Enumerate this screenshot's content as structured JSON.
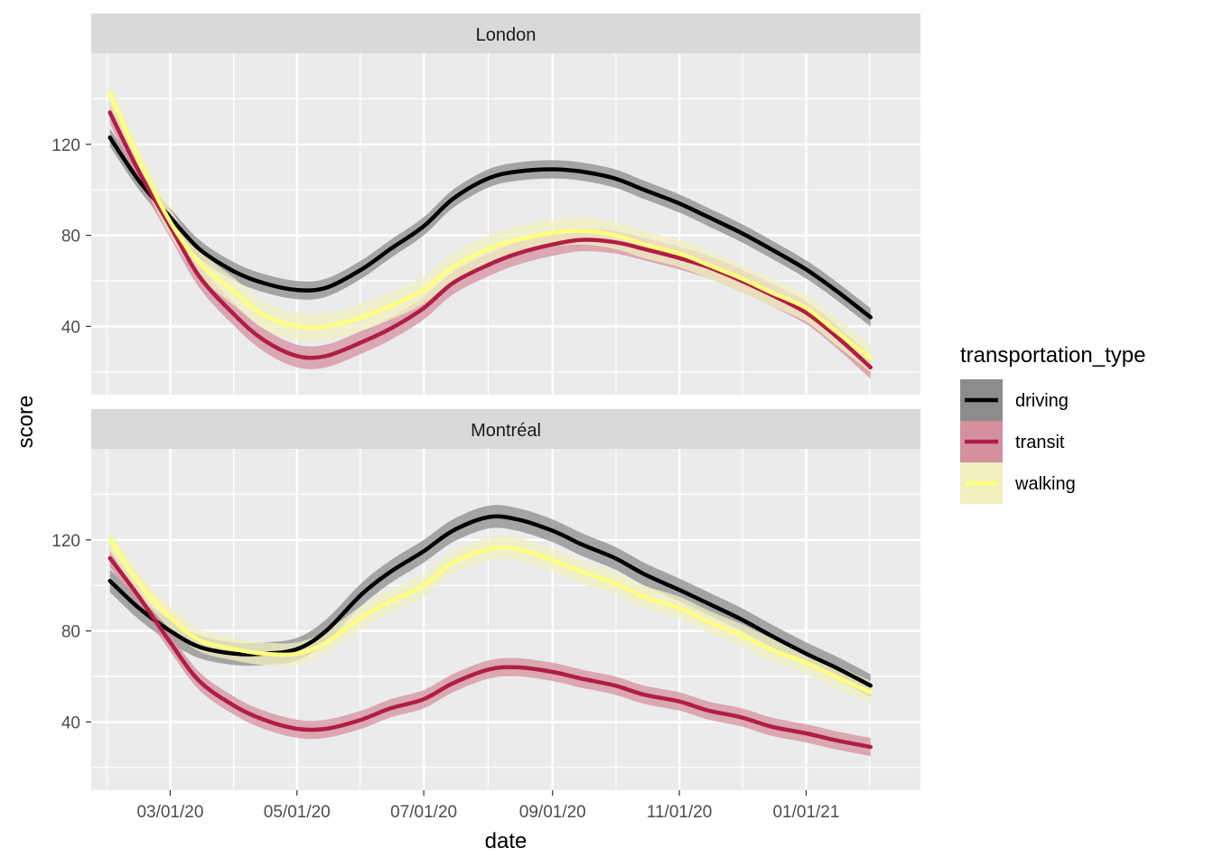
{
  "chart_data": {
    "type": "line",
    "xlabel": "date",
    "ylabel": "score",
    "x_ticks": [
      "03/01/20",
      "05/01/20",
      "07/01/20",
      "09/01/20",
      "11/01/20",
      "01/01/21"
    ],
    "x_range": [
      "2020-01-23",
      "2021-02-25"
    ],
    "y_ticks": [
      40,
      80,
      120
    ],
    "ylim": [
      10,
      160
    ],
    "grid": true,
    "legend": {
      "title": "transportation_type",
      "position": "right",
      "entries": [
        "driving",
        "transit",
        "walking"
      ]
    },
    "series_styles": {
      "driving": {
        "line": "#000000",
        "band": "#8c8c8c"
      },
      "transit": {
        "line": "#b01e45",
        "band": "#d4909f"
      },
      "walking": {
        "line": "#ffff80",
        "band": "#f0f0c0"
      }
    },
    "panels": [
      {
        "title": "London",
        "series": [
          {
            "name": "driving",
            "x": [
              "2020-02-01",
              "2020-02-15",
              "2020-03-01",
              "2020-03-15",
              "2020-04-01",
              "2020-04-15",
              "2020-05-01",
              "2020-05-15",
              "2020-06-01",
              "2020-06-15",
              "2020-07-01",
              "2020-07-15",
              "2020-08-01",
              "2020-08-15",
              "2020-09-01",
              "2020-09-15",
              "2020-10-01",
              "2020-10-15",
              "2020-11-01",
              "2020-11-15",
              "2020-12-01",
              "2020-12-15",
              "2021-01-01",
              "2021-01-15",
              "2021-02-01"
            ],
            "y": [
              123,
              104,
              88,
              74,
              64,
              59,
              56,
              57,
              65,
              74,
              84,
              96,
              105,
              108,
              109,
              108,
              105,
              100,
              94,
              88,
              81,
              74,
              65,
              56,
              44
            ],
            "band": 4
          },
          {
            "name": "transit",
            "x": [
              "2020-02-01",
              "2020-02-15",
              "2020-03-01",
              "2020-03-15",
              "2020-04-01",
              "2020-04-15",
              "2020-05-01",
              "2020-05-15",
              "2020-06-01",
              "2020-06-15",
              "2020-07-01",
              "2020-07-15",
              "2020-08-01",
              "2020-08-15",
              "2020-09-01",
              "2020-09-15",
              "2020-10-01",
              "2020-10-15",
              "2020-11-01",
              "2020-11-15",
              "2020-12-01",
              "2020-12-15",
              "2021-01-01",
              "2021-01-15",
              "2021-02-01"
            ],
            "y": [
              134,
              108,
              84,
              62,
              45,
              34,
              27,
              27,
              33,
              39,
              48,
              59,
              67,
              72,
              76,
              78,
              77,
              74,
              70,
              66,
              60,
              54,
              46,
              36,
              22
            ],
            "band": 5
          },
          {
            "name": "walking",
            "x": [
              "2020-02-01",
              "2020-02-15",
              "2020-03-01",
              "2020-03-15",
              "2020-04-01",
              "2020-04-15",
              "2020-05-01",
              "2020-05-15",
              "2020-06-01",
              "2020-06-15",
              "2020-07-01",
              "2020-07-15",
              "2020-08-01",
              "2020-08-15",
              "2020-09-01",
              "2020-09-15",
              "2020-10-01",
              "2020-10-15",
              "2020-11-01",
              "2020-11-15",
              "2020-12-01",
              "2020-12-15",
              "2021-01-01",
              "2021-01-15",
              "2021-02-01"
            ],
            "y": [
              142,
              113,
              86,
              68,
              55,
              45,
              40,
              40,
              44,
              49,
              56,
              66,
              74,
              78,
              81,
              82,
              80,
              76,
              72,
              67,
              61,
              55,
              48,
              38,
              26
            ],
            "band": 6
          }
        ]
      },
      {
        "title": "Montréal",
        "series": [
          {
            "name": "driving",
            "x": [
              "2020-02-01",
              "2020-02-15",
              "2020-03-01",
              "2020-03-15",
              "2020-04-01",
              "2020-04-15",
              "2020-05-01",
              "2020-05-15",
              "2020-06-01",
              "2020-06-15",
              "2020-07-01",
              "2020-07-15",
              "2020-08-01",
              "2020-08-15",
              "2020-09-01",
              "2020-09-15",
              "2020-10-01",
              "2020-10-15",
              "2020-11-01",
              "2020-11-15",
              "2020-12-01",
              "2020-12-15",
              "2021-01-01",
              "2021-01-15",
              "2021-02-01"
            ],
            "y": [
              102,
              90,
              80,
              73,
              70,
              70,
              72,
              80,
              96,
              106,
              115,
              124,
              130,
              129,
              124,
              118,
              112,
              105,
              98,
              92,
              85,
              78,
              70,
              64,
              56
            ],
            "band": 5
          },
          {
            "name": "transit",
            "x": [
              "2020-02-01",
              "2020-02-15",
              "2020-03-01",
              "2020-03-15",
              "2020-04-01",
              "2020-04-15",
              "2020-05-01",
              "2020-05-15",
              "2020-06-01",
              "2020-06-15",
              "2020-07-01",
              "2020-07-15",
              "2020-08-01",
              "2020-08-15",
              "2020-09-01",
              "2020-09-15",
              "2020-10-01",
              "2020-10-15",
              "2020-11-01",
              "2020-11-15",
              "2020-12-01",
              "2020-12-15",
              "2021-01-01",
              "2021-01-15",
              "2021-02-01"
            ],
            "y": [
              112,
              95,
              75,
              58,
              47,
              41,
              37,
              37,
              41,
              46,
              50,
              57,
              63,
              64,
              62,
              59,
              56,
              52,
              49,
              45,
              42,
              38,
              35,
              32,
              29
            ],
            "band": 4
          },
          {
            "name": "walking",
            "x": [
              "2020-02-01",
              "2020-02-15",
              "2020-03-01",
              "2020-03-15",
              "2020-04-01",
              "2020-04-15",
              "2020-05-01",
              "2020-05-15",
              "2020-06-01",
              "2020-06-15",
              "2020-07-01",
              "2020-07-15",
              "2020-08-01",
              "2020-08-15",
              "2020-09-01",
              "2020-09-15",
              "2020-10-01",
              "2020-10-15",
              "2020-11-01",
              "2020-11-15",
              "2020-12-01",
              "2020-12-15",
              "2021-01-01",
              "2021-01-15",
              "2021-02-01"
            ],
            "y": [
              120,
              101,
              86,
              76,
              72,
              70,
              70,
              75,
              86,
              93,
              100,
              110,
              116,
              116,
              111,
              106,
              101,
              95,
              90,
              84,
              78,
              72,
              66,
              60,
              53
            ],
            "band": 5
          }
        ]
      }
    ]
  }
}
